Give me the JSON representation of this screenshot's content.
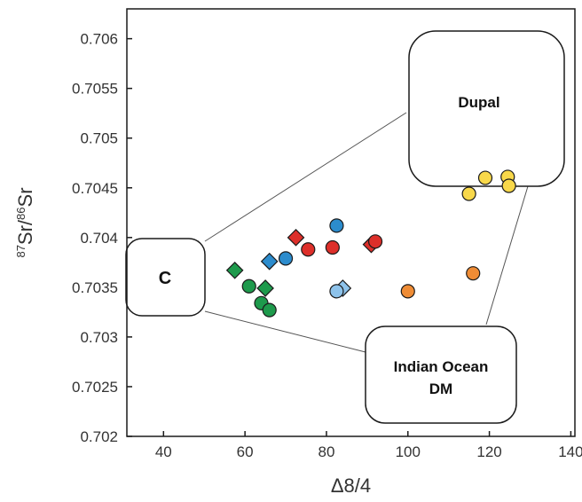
{
  "chart_data": {
    "type": "scatter",
    "xlabel": "Δ8/4",
    "ylabel": "87Sr/86Sr",
    "ylabel_parts": {
      "sup1": "87",
      "main1": "Sr/",
      "sup2": "86",
      "main2": "Sr"
    },
    "xlim": [
      31,
      141
    ],
    "ylim": [
      0.702,
      0.7063
    ],
    "x_ticks": [
      40,
      60,
      80,
      100,
      120,
      140
    ],
    "x_tick_labels": [
      "40",
      "60",
      "80",
      "100",
      "120",
      "140"
    ],
    "y_ticks": [
      0.702,
      0.7025,
      0.703,
      0.7035,
      0.704,
      0.7045,
      0.705,
      0.7055,
      0.706
    ],
    "y_tick_labels": [
      "0.702",
      "0.7025",
      "0.703",
      "0.7035",
      "0.704",
      "0.7045",
      "0.705",
      "0.7055",
      "0.706"
    ],
    "grid": false,
    "colors": {
      "green": "#1e9a4c",
      "blue": "#2c8ccd",
      "lightblue": "#8ec3eb",
      "red": "#dd2f2a",
      "orange": "#ef8c35",
      "yellow": "#f8d84a"
    },
    "end_members": [
      {
        "label": "Dupal",
        "x": 124,
        "y": 0.70525
      },
      {
        "label": "C",
        "x": 31,
        "y": 0.7035
      },
      {
        "label_lines": [
          "Indian Ocean",
          "DM"
        ],
        "x": 116,
        "y": 0.70265
      }
    ],
    "series": [
      {
        "color": "green",
        "marker": "diamond",
        "points": [
          [
            57.5,
            0.70367
          ],
          [
            65,
            0.70349
          ]
        ]
      },
      {
        "color": "green",
        "marker": "circle",
        "points": [
          [
            61,
            0.70351
          ],
          [
            64,
            0.70334
          ],
          [
            66,
            0.70327
          ]
        ]
      },
      {
        "color": "blue",
        "marker": "diamond",
        "points": [
          [
            66,
            0.70376
          ]
        ]
      },
      {
        "color": "blue",
        "marker": "circle",
        "points": [
          [
            70,
            0.70379
          ],
          [
            82.5,
            0.70412
          ]
        ]
      },
      {
        "color": "lightblue",
        "marker": "diamond",
        "points": [
          [
            84,
            0.70349
          ]
        ]
      },
      {
        "color": "lightblue",
        "marker": "circle",
        "points": [
          [
            82.5,
            0.70346
          ]
        ]
      },
      {
        "color": "red",
        "marker": "diamond",
        "points": [
          [
            72.5,
            0.704
          ],
          [
            91,
            0.70393
          ]
        ]
      },
      {
        "color": "red",
        "marker": "circle",
        "points": [
          [
            75.5,
            0.70388
          ],
          [
            81.5,
            0.7039
          ],
          [
            92,
            0.70396
          ]
        ]
      },
      {
        "color": "orange",
        "marker": "circle",
        "points": [
          [
            100,
            0.70346
          ],
          [
            116,
            0.70364
          ]
        ]
      },
      {
        "color": "yellow",
        "marker": "circle",
        "points": [
          [
            115,
            0.70444
          ],
          [
            119,
            0.7046
          ],
          [
            124.5,
            0.70461
          ],
          [
            124.8,
            0.70452
          ]
        ]
      }
    ]
  }
}
